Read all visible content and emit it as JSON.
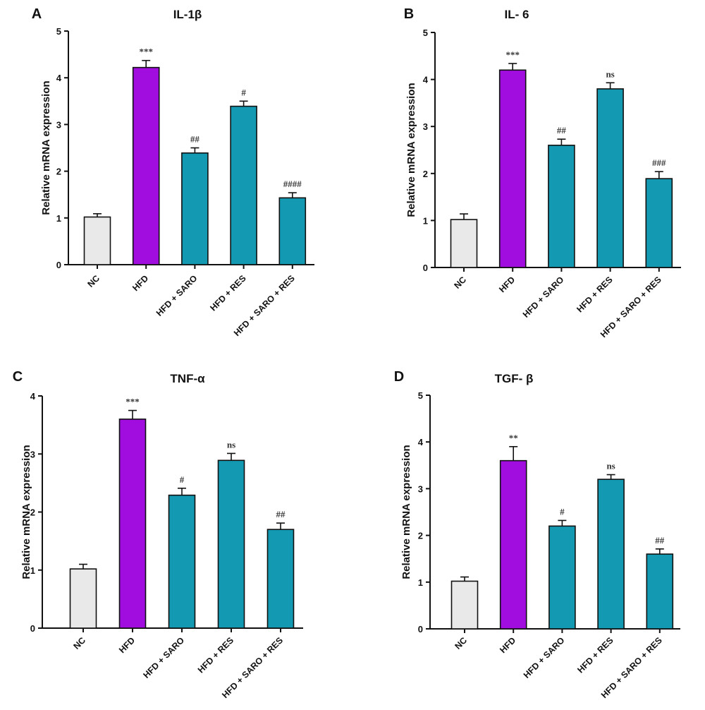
{
  "chart_data": [
    {
      "type": "bar",
      "panel": "A",
      "title": "IL-1β",
      "ylabel": "Relative mRNA expression",
      "xlabel": "",
      "ylim": [
        0,
        5
      ],
      "yticks": [
        0,
        1,
        2,
        3,
        4,
        5
      ],
      "categories": [
        "NC",
        "HFD",
        "HFD + SARO",
        "HFD + RES",
        "HFD + SARO + RES"
      ],
      "values": [
        1.02,
        4.22,
        2.39,
        3.39,
        1.43
      ],
      "errors": [
        0.07,
        0.15,
        0.11,
        0.11,
        0.11
      ],
      "significance": [
        "",
        "***",
        "##",
        "#",
        "####"
      ],
      "colors": [
        "#e9e9e9",
        "#a10ddf",
        "#1399b1",
        "#1399b1",
        "#1399b1"
      ],
      "grid": false
    },
    {
      "type": "bar",
      "panel": "B",
      "title": "IL- 6",
      "ylabel": "Relative mRNA expression",
      "xlabel": "",
      "ylim": [
        0,
        5
      ],
      "yticks": [
        0,
        1,
        2,
        3,
        4,
        5
      ],
      "categories": [
        "NC",
        "HFD",
        "HFD + SARO",
        "HFD + RES",
        "HFD + SARO + RES"
      ],
      "values": [
        1.02,
        4.2,
        2.6,
        3.8,
        1.89
      ],
      "errors": [
        0.12,
        0.14,
        0.13,
        0.13,
        0.15
      ],
      "significance": [
        "",
        "***",
        "##",
        "ns",
        "###"
      ],
      "colors": [
        "#e9e9e9",
        "#a10ddf",
        "#1399b1",
        "#1399b1",
        "#1399b1"
      ],
      "grid": false
    },
    {
      "type": "bar",
      "panel": "C",
      "title": "TNF-α",
      "ylabel": "Relative mRNA expression",
      "xlabel": "",
      "ylim": [
        0,
        4
      ],
      "yticks": [
        0,
        1,
        2,
        3,
        4
      ],
      "categories": [
        "NC",
        "HFD",
        "HFD + SARO",
        "HFD + RES",
        "HFD + SARO + RES"
      ],
      "values": [
        1.02,
        3.6,
        2.29,
        2.89,
        1.7
      ],
      "errors": [
        0.08,
        0.15,
        0.12,
        0.12,
        0.11
      ],
      "significance": [
        "",
        "***",
        "#",
        "ns",
        "##"
      ],
      "colors": [
        "#e9e9e9",
        "#a10ddf",
        "#1399b1",
        "#1399b1",
        "#1399b1"
      ],
      "grid": false
    },
    {
      "type": "bar",
      "panel": "D",
      "title": "TGF- β",
      "ylabel": "Relative mRNA expression",
      "xlabel": "",
      "ylim": [
        0,
        5
      ],
      "yticks": [
        0,
        1,
        2,
        3,
        4,
        5
      ],
      "categories": [
        "NC",
        "HFD",
        "HFD + SARO",
        "HFD + RES",
        "HFD + SARO + RES"
      ],
      "values": [
        1.02,
        3.6,
        2.2,
        3.2,
        1.6
      ],
      "errors": [
        0.09,
        0.3,
        0.12,
        0.1,
        0.11
      ],
      "significance": [
        "",
        "**",
        "#",
        "ns",
        "##"
      ],
      "colors": [
        "#e9e9e9",
        "#a10ddf",
        "#1399b1",
        "#1399b1",
        "#1399b1"
      ],
      "grid": false
    }
  ]
}
